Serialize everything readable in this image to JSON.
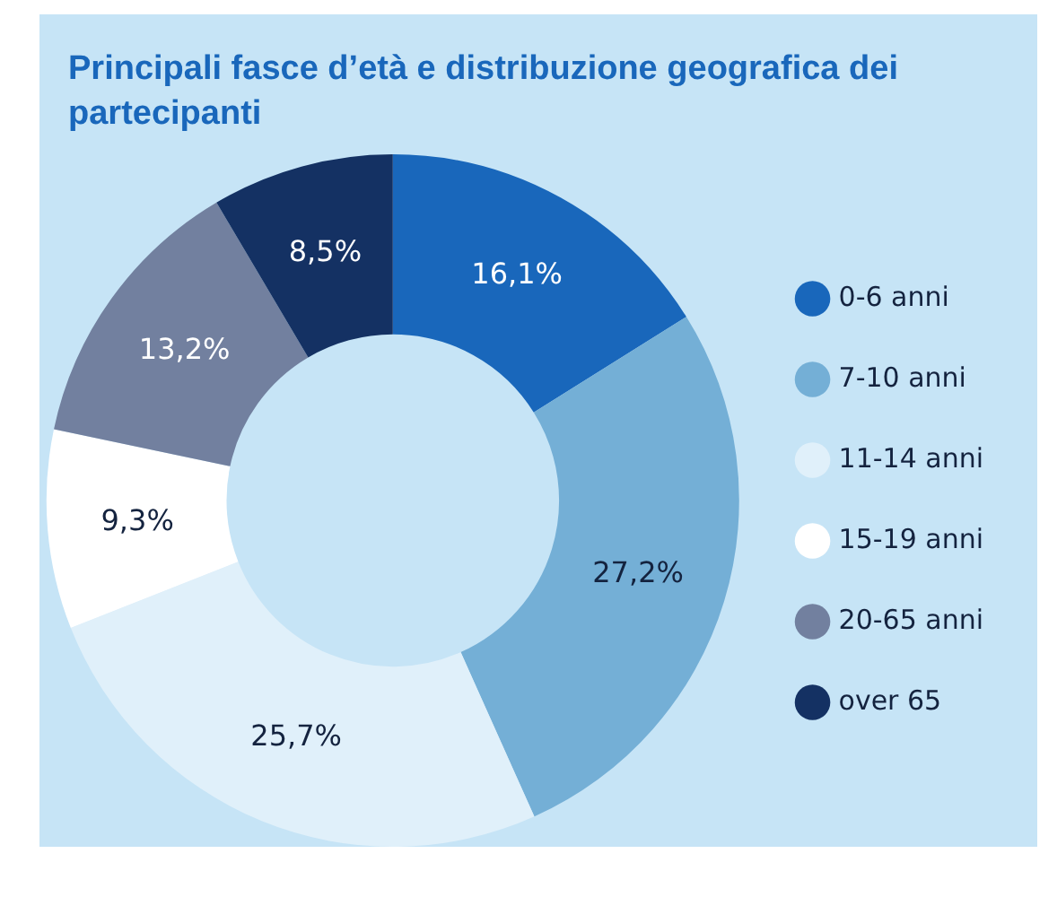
{
  "chart_data": {
    "type": "donut",
    "title": "Principali fasce d’età e distribuzione geografica dei partecipanti",
    "categories": [
      "0-6 anni",
      "7-10 anni",
      "11-14 anni",
      "15-19 anni",
      "20-65 anni",
      "over 65"
    ],
    "values": [
      16.1,
      27.2,
      25.7,
      9.3,
      13.2,
      8.5
    ],
    "colors": [
      "#1967bb",
      "#74afd6",
      "#e0f0fa",
      "#ffffff",
      "#72809f",
      "#143163"
    ],
    "value_labels": [
      "16,1%",
      "27,2%",
      "25,7%",
      "9,3%",
      "13,2%",
      "8,5%"
    ],
    "legend": "right"
  }
}
